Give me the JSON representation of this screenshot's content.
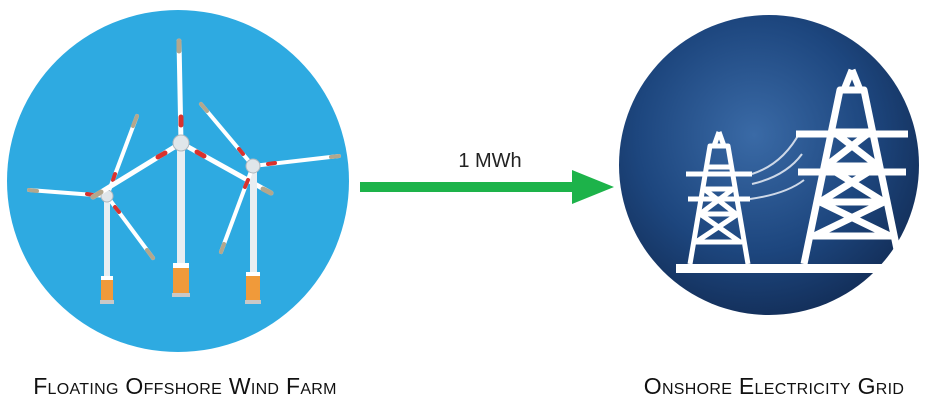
{
  "source_node": {
    "caption": "Floating Offshore Wind Farm",
    "icon": "wind-turbines-icon",
    "bg_color": "#2eaae1"
  },
  "target_node": {
    "caption": "Onshore Electricity Grid",
    "icon": "transmission-towers-icon",
    "bg_color": "#173a6b"
  },
  "flow": {
    "label": "1 MWh",
    "color": "#1db34a"
  }
}
